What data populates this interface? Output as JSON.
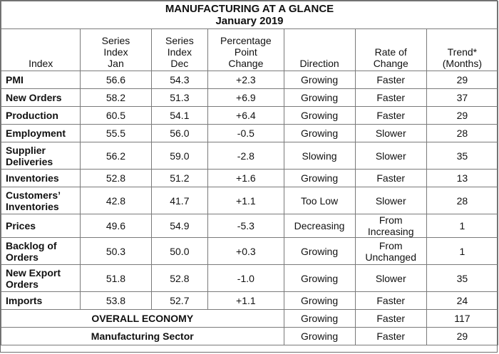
{
  "title": "MANUFACTURING AT A GLANCE",
  "subtitle": "January 2019",
  "headers": {
    "index": "Index",
    "jan": [
      "Series",
      "Index",
      "Jan"
    ],
    "dec": [
      "Series",
      "Index",
      "Dec"
    ],
    "change": [
      "Percentage",
      "Point",
      "Change"
    ],
    "direction": "Direction",
    "rate": [
      "Rate of",
      "Change"
    ],
    "trend": [
      "Trend*",
      "(Months)"
    ]
  },
  "rows": [
    {
      "index": [
        "PMI"
      ],
      "jan": "56.6",
      "dec": "54.3",
      "change": "+2.3",
      "direction": "Growing",
      "rate": [
        "Faster"
      ],
      "trend": "29"
    },
    {
      "index": [
        "New Orders"
      ],
      "jan": "58.2",
      "dec": "51.3",
      "change": "+6.9",
      "direction": "Growing",
      "rate": [
        "Faster"
      ],
      "trend": "37"
    },
    {
      "index": [
        "Production"
      ],
      "jan": "60.5",
      "dec": "54.1",
      "change": "+6.4",
      "direction": "Growing",
      "rate": [
        "Faster"
      ],
      "trend": "29"
    },
    {
      "index": [
        "Employment"
      ],
      "jan": "55.5",
      "dec": "56.0",
      "change": "-0.5",
      "direction": "Growing",
      "rate": [
        "Slower"
      ],
      "trend": "28"
    },
    {
      "index": [
        "Supplier",
        "Deliveries"
      ],
      "jan": "56.2",
      "dec": "59.0",
      "change": "-2.8",
      "direction": "Slowing",
      "rate": [
        "Slower"
      ],
      "trend": "35"
    },
    {
      "index": [
        "Inventories"
      ],
      "jan": "52.8",
      "dec": "51.2",
      "change": "+1.6",
      "direction": "Growing",
      "rate": [
        "Faster"
      ],
      "trend": "13"
    },
    {
      "index": [
        "Customers’",
        "Inventories"
      ],
      "jan": "42.8",
      "dec": "41.7",
      "change": "+1.1",
      "direction": "Too Low",
      "rate": [
        "Slower"
      ],
      "trend": "28"
    },
    {
      "index": [
        "Prices"
      ],
      "jan": "49.6",
      "dec": "54.9",
      "change": "-5.3",
      "direction": "Decreasing",
      "rate": [
        "From",
        "Increasing"
      ],
      "trend": "1"
    },
    {
      "index": [
        "Backlog of",
        "Orders"
      ],
      "jan": "50.3",
      "dec": "50.0",
      "change": "+0.3",
      "direction": "Growing",
      "rate": [
        "From",
        "Unchanged"
      ],
      "trend": "1"
    },
    {
      "index": [
        "New Export",
        "Orders"
      ],
      "jan": "51.8",
      "dec": "52.8",
      "change": "-1.0",
      "direction": "Growing",
      "rate": [
        "Slower"
      ],
      "trend": "35"
    },
    {
      "index": [
        "Imports"
      ],
      "jan": "53.8",
      "dec": "52.7",
      "change": "+1.1",
      "direction": "Growing",
      "rate": [
        "Faster"
      ],
      "trend": "24"
    }
  ],
  "summary": [
    {
      "label": "OVERALL ECONOMY",
      "direction": "Growing",
      "rate": "Faster",
      "trend": "117"
    },
    {
      "label": "Manufacturing Sector",
      "direction": "Growing",
      "rate": "Faster",
      "trend": "29"
    }
  ]
}
